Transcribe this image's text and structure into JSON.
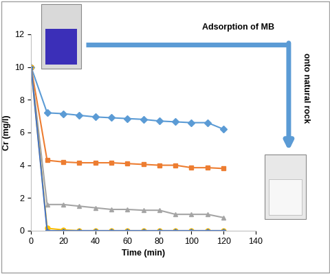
{
  "chart_data": {
    "type": "line",
    "x_label": "Time (min)",
    "y_label": "Cr (mg/l)",
    "annotations": [
      "Adsorption of MB",
      "onto natural rock"
    ],
    "x": [
      0,
      10,
      20,
      30,
      40,
      50,
      60,
      70,
      80,
      90,
      100,
      110,
      120
    ],
    "xlim": [
      0,
      140
    ],
    "xticks": [
      0,
      20,
      40,
      60,
      80,
      100,
      120,
      140
    ],
    "ylim": [
      0,
      12
    ],
    "yticks": [
      0,
      2,
      4,
      6,
      8,
      10,
      12
    ],
    "grid": false,
    "series": [
      {
        "color": "#5B9BD5",
        "marker": "diamond",
        "line_style": "solid",
        "values": [
          10,
          7.2,
          7.15,
          7.05,
          6.95,
          6.9,
          6.85,
          6.8,
          6.7,
          6.65,
          6.6,
          6.6,
          6.2
        ]
      },
      {
        "color": "#ED7D31",
        "marker": "square",
        "line_style": "solid",
        "values": [
          10,
          4.3,
          4.2,
          4.15,
          4.15,
          4.15,
          4.1,
          4.05,
          4.0,
          4.0,
          3.85,
          3.85,
          3.8
        ]
      },
      {
        "color": "#A5A5A5",
        "marker": "triangle",
        "line_style": "solid",
        "values": [
          10,
          1.6,
          1.6,
          1.5,
          1.4,
          1.3,
          1.3,
          1.25,
          1.25,
          1.0,
          1.0,
          1.0,
          0.8
        ]
      },
      {
        "color": "#FFC000",
        "marker": "circle",
        "line_style": "solid",
        "values": [
          10,
          0.15,
          0.05,
          0,
          0,
          0,
          0,
          0,
          0,
          0,
          0,
          0,
          0
        ]
      },
      {
        "color": "#4472C4",
        "marker": "star",
        "line_style": "solid",
        "values": [
          10,
          0,
          0,
          0,
          0,
          0,
          0,
          0,
          0,
          0,
          0,
          0,
          0
        ]
      }
    ]
  }
}
